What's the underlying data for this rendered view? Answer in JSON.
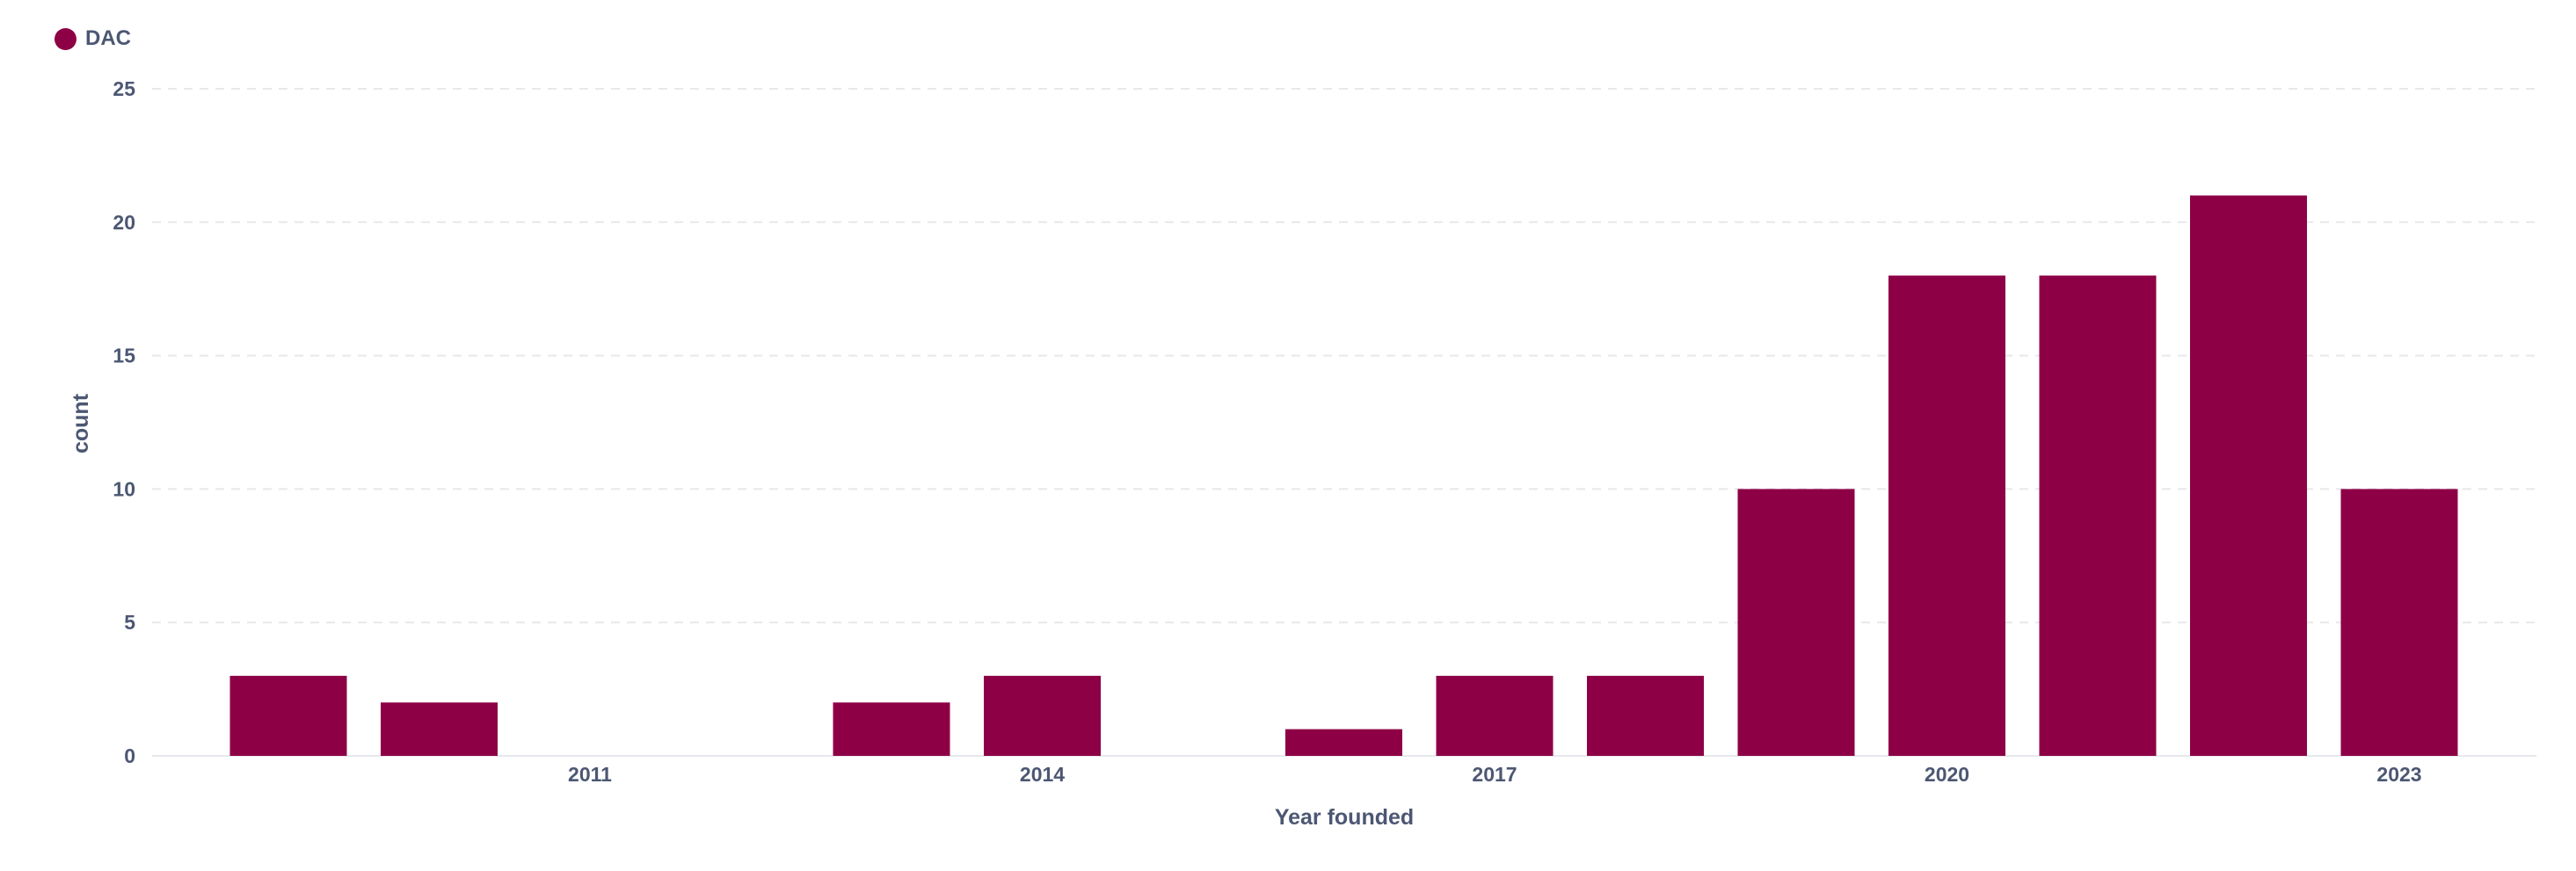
{
  "chart_data": {
    "type": "bar",
    "title": "",
    "xlabel": "Year founded",
    "ylabel": "count",
    "ylim": [
      0,
      25
    ],
    "yticks": [
      0,
      5,
      10,
      15,
      20,
      25
    ],
    "grid": true,
    "legend_position": "top-left",
    "categories": [
      2009,
      2010,
      2011,
      2012,
      2013,
      2014,
      2015,
      2016,
      2017,
      2018,
      2019,
      2020,
      2021,
      2022,
      2023
    ],
    "x_tick_labels": [
      "2011",
      "2014",
      "2017",
      "2020",
      "2023"
    ],
    "series": [
      {
        "name": "DAC",
        "color": "#8e0045",
        "values": [
          3,
          2,
          0,
          0,
          2,
          3,
          0,
          1,
          3,
          3,
          10,
          18,
          18,
          21,
          10
        ]
      }
    ]
  }
}
